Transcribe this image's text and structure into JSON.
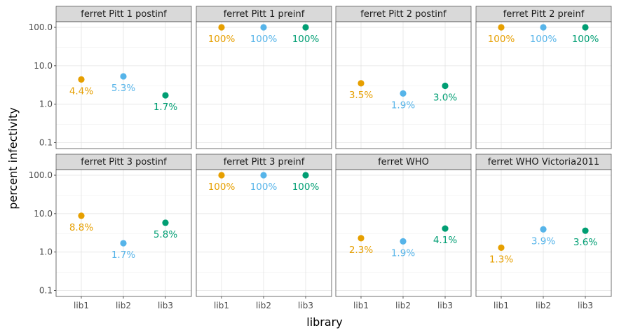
{
  "chart_data": {
    "type": "scatter",
    "xlabel": "library",
    "ylabel": "percent infectivity",
    "y_scale": "log10",
    "ylim": [
      0.07,
      140
    ],
    "y_ticks": [
      "0.1",
      "1.0",
      "10.0",
      "100.0"
    ],
    "y_tick_values": [
      0.1,
      1,
      10,
      100
    ],
    "x_categories": [
      "lib1",
      "lib2",
      "lib3"
    ],
    "grid": true,
    "colors": {
      "lib1": "#E69F00",
      "lib2": "#56B4E9",
      "lib3": "#009E73"
    },
    "facets": [
      {
        "title": "ferret Pitt 1 postinf",
        "values": [
          4.4,
          5.3,
          1.7
        ],
        "labels": [
          "4.4%",
          "5.3%",
          "1.7%"
        ]
      },
      {
        "title": "ferret Pitt 1 preinf",
        "values": [
          100,
          100,
          100
        ],
        "labels": [
          "100%",
          "100%",
          "100%"
        ]
      },
      {
        "title": "ferret Pitt 2 postinf",
        "values": [
          3.5,
          1.9,
          3.0
        ],
        "labels": [
          "3.5%",
          "1.9%",
          "3.0%"
        ]
      },
      {
        "title": "ferret Pitt 2 preinf",
        "values": [
          100,
          100,
          100
        ],
        "labels": [
          "100%",
          "100%",
          "100%"
        ]
      },
      {
        "title": "ferret Pitt 3 postinf",
        "values": [
          8.8,
          1.7,
          5.8
        ],
        "labels": [
          "8.8%",
          "1.7%",
          "5.8%"
        ]
      },
      {
        "title": "ferret Pitt 3 preinf",
        "values": [
          100,
          100,
          100
        ],
        "labels": [
          "100%",
          "100%",
          "100%"
        ]
      },
      {
        "title": "ferret WHO",
        "values": [
          2.3,
          1.9,
          4.1
        ],
        "labels": [
          "2.3%",
          "1.9%",
          "4.1%"
        ]
      },
      {
        "title": "ferret WHO Victoria2011",
        "values": [
          1.3,
          3.9,
          3.6
        ],
        "labels": [
          "1.3%",
          "3.9%",
          "3.6%"
        ]
      }
    ]
  }
}
